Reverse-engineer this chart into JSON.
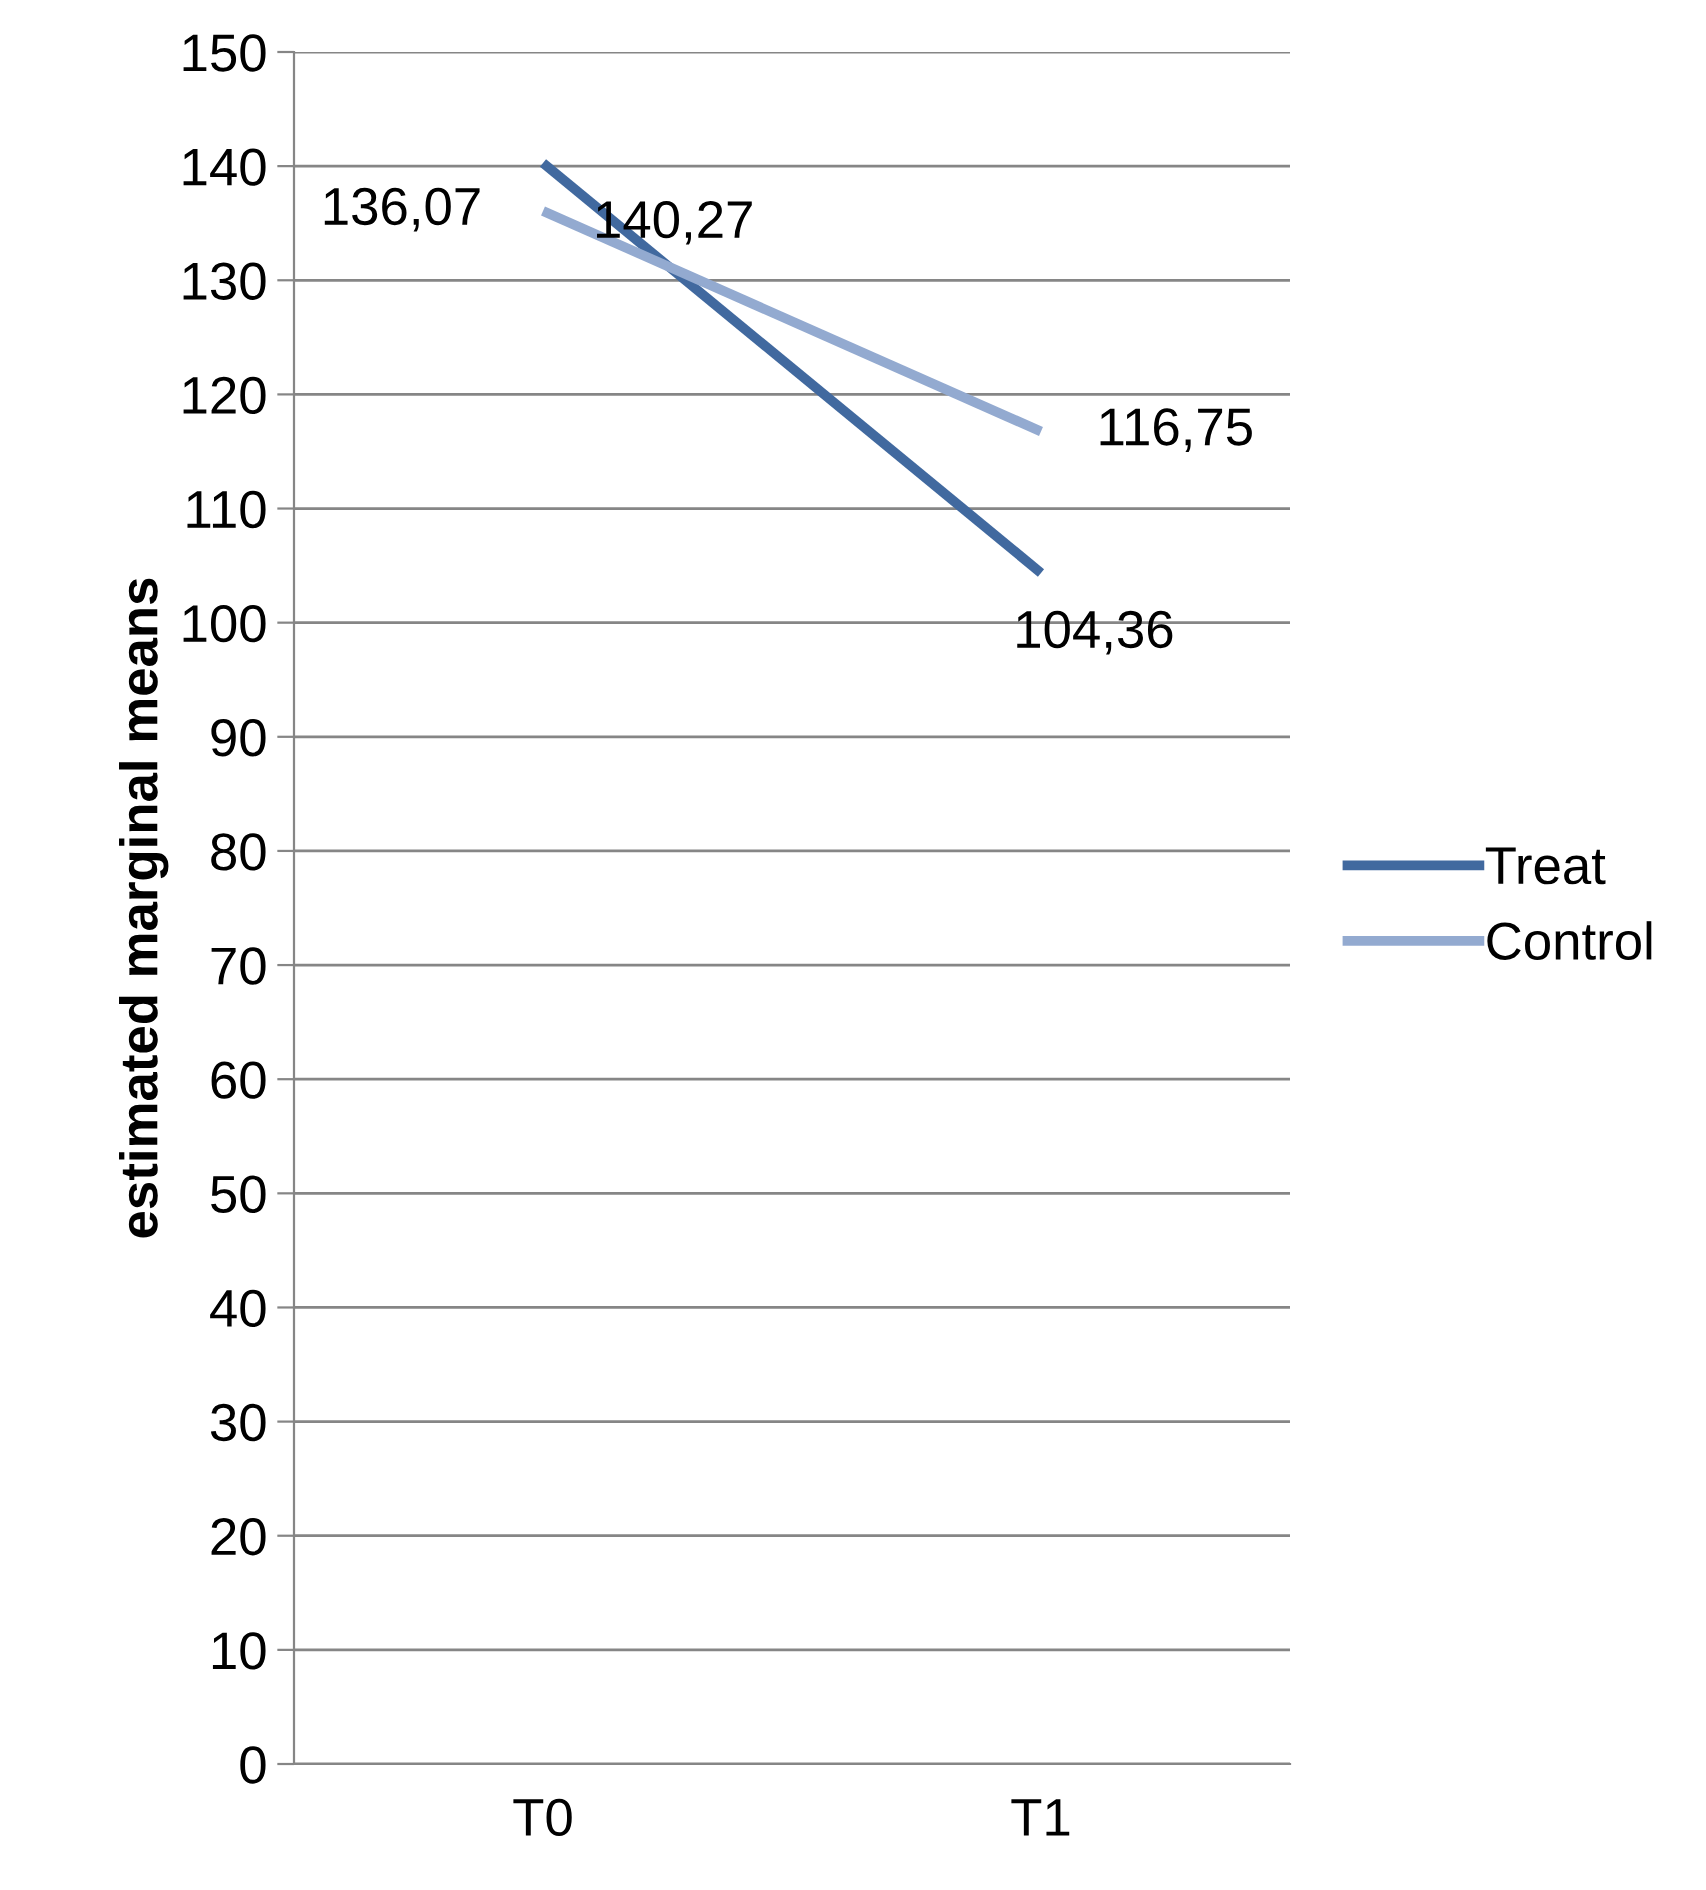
{
  "chart_data": {
    "type": "line",
    "ylabel": "estimated marginal means",
    "categories": [
      "T0",
      "T1"
    ],
    "series": [
      {
        "name": "Treat",
        "color": "#41699f",
        "values": [
          140.27,
          104.36
        ],
        "value_labels": [
          "140,27",
          "104,36"
        ]
      },
      {
        "name": "Control",
        "color": "#93aad0",
        "values": [
          136.07,
          116.75
        ],
        "value_labels": [
          "136,07",
          "116,75"
        ]
      }
    ],
    "ylim": [
      0,
      150
    ],
    "yticks": [
      0,
      10,
      20,
      30,
      40,
      50,
      60,
      70,
      80,
      90,
      100,
      110,
      120,
      130,
      140,
      150
    ],
    "grid": "y",
    "legend": "right",
    "marker": "none",
    "line_style": "solid"
  }
}
